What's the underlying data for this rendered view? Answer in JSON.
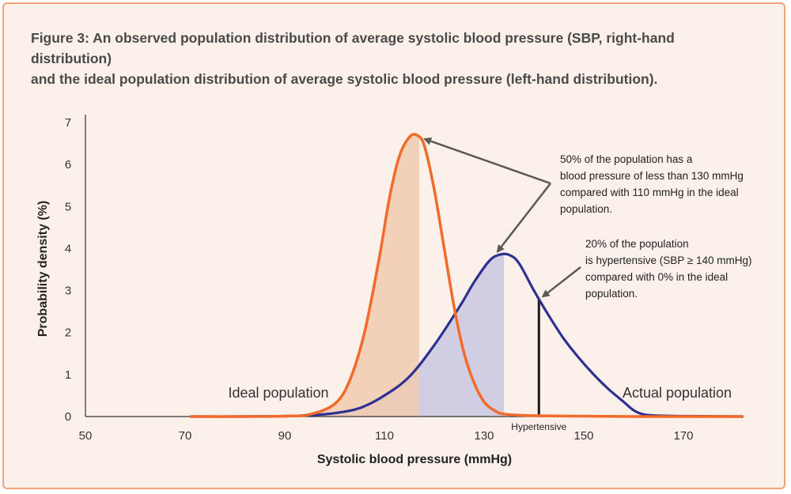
{
  "figure": {
    "caption_line1": "Figure 3: An observed population distribution of average systolic blood pressure (SBP, right-hand distribution)",
    "caption_line2": "and the ideal population distribution of average systolic blood pressure (left-hand distribution)."
  },
  "colors": {
    "frame_border": "#f1a27a",
    "frame_bg": "#fbf1ea",
    "ideal_curve": "#f26b2a",
    "ideal_fill": "#f1cbb0",
    "actual_curve": "#2e3192",
    "actual_fill": "#c9c8e3",
    "hypertensive_line": "#1a1a1a",
    "arrow": "#595959"
  },
  "chart_data": {
    "type": "line",
    "title": "Figure 3: An observed population distribution of average systolic blood pressure (SBP, right-hand distribution) and the ideal population distribution of average systolic blood pressure (left-hand distribution).",
    "xlabel": "Systolic blood pressure (mmHg)",
    "ylabel": "Probability density (%)",
    "xlim": [
      50,
      182
    ],
    "ylim": [
      0,
      7
    ],
    "x_ticks": [
      "50",
      "70",
      "90",
      "110",
      "130",
      "150",
      "170"
    ],
    "y_ticks": [
      "0",
      "1",
      "2",
      "3",
      "4",
      "5",
      "6",
      "7"
    ],
    "grid": false,
    "series": [
      {
        "name": "Ideal population",
        "x": [
          71,
          80,
          90,
          95,
          100,
          103,
          106,
          109,
          111,
          113,
          115,
          116.5,
          118,
          120,
          122,
          124,
          126,
          128,
          130,
          132,
          134,
          140,
          150,
          160,
          170,
          182
        ],
        "y": [
          0,
          0,
          0.01,
          0.05,
          0.3,
          0.85,
          2.0,
          3.8,
          5.2,
          6.2,
          6.65,
          6.7,
          6.45,
          5.4,
          4.0,
          2.6,
          1.5,
          0.8,
          0.35,
          0.15,
          0.06,
          0.02,
          0.01,
          0,
          0,
          0
        ],
        "shaded_below": 117
      },
      {
        "name": "Actual population",
        "x": [
          71,
          80,
          90,
          95,
          100,
          105,
          110,
          115,
          120,
          125,
          128,
          131,
          133,
          135,
          137,
          140,
          143,
          146,
          149,
          152,
          155,
          158,
          160,
          162,
          165,
          170,
          182
        ],
        "y": [
          0,
          0,
          0.01,
          0.03,
          0.08,
          0.2,
          0.5,
          0.95,
          1.7,
          2.6,
          3.2,
          3.7,
          3.85,
          3.85,
          3.65,
          3.0,
          2.4,
          1.85,
          1.4,
          1.0,
          0.65,
          0.35,
          0.15,
          0.05,
          0.02,
          0.01,
          0
        ],
        "shaded_below": 134
      }
    ],
    "series_labels": {
      "ideal": "Ideal population",
      "actual": "Actual population"
    },
    "hypertensive_line": {
      "x": 141,
      "label": "Hypertensive"
    },
    "annotations": [
      {
        "lines": [
          "50% of the population has a",
          "blood pressure of less than 130 mmHg",
          "compared with 110 mmHg in the ideal",
          "population."
        ]
      },
      {
        "lines": [
          "20% of the population",
          "is hypertensive (SBP  ≥ 140 mmHg)",
          "compared with 0% in the ideal",
          "population."
        ]
      }
    ]
  }
}
